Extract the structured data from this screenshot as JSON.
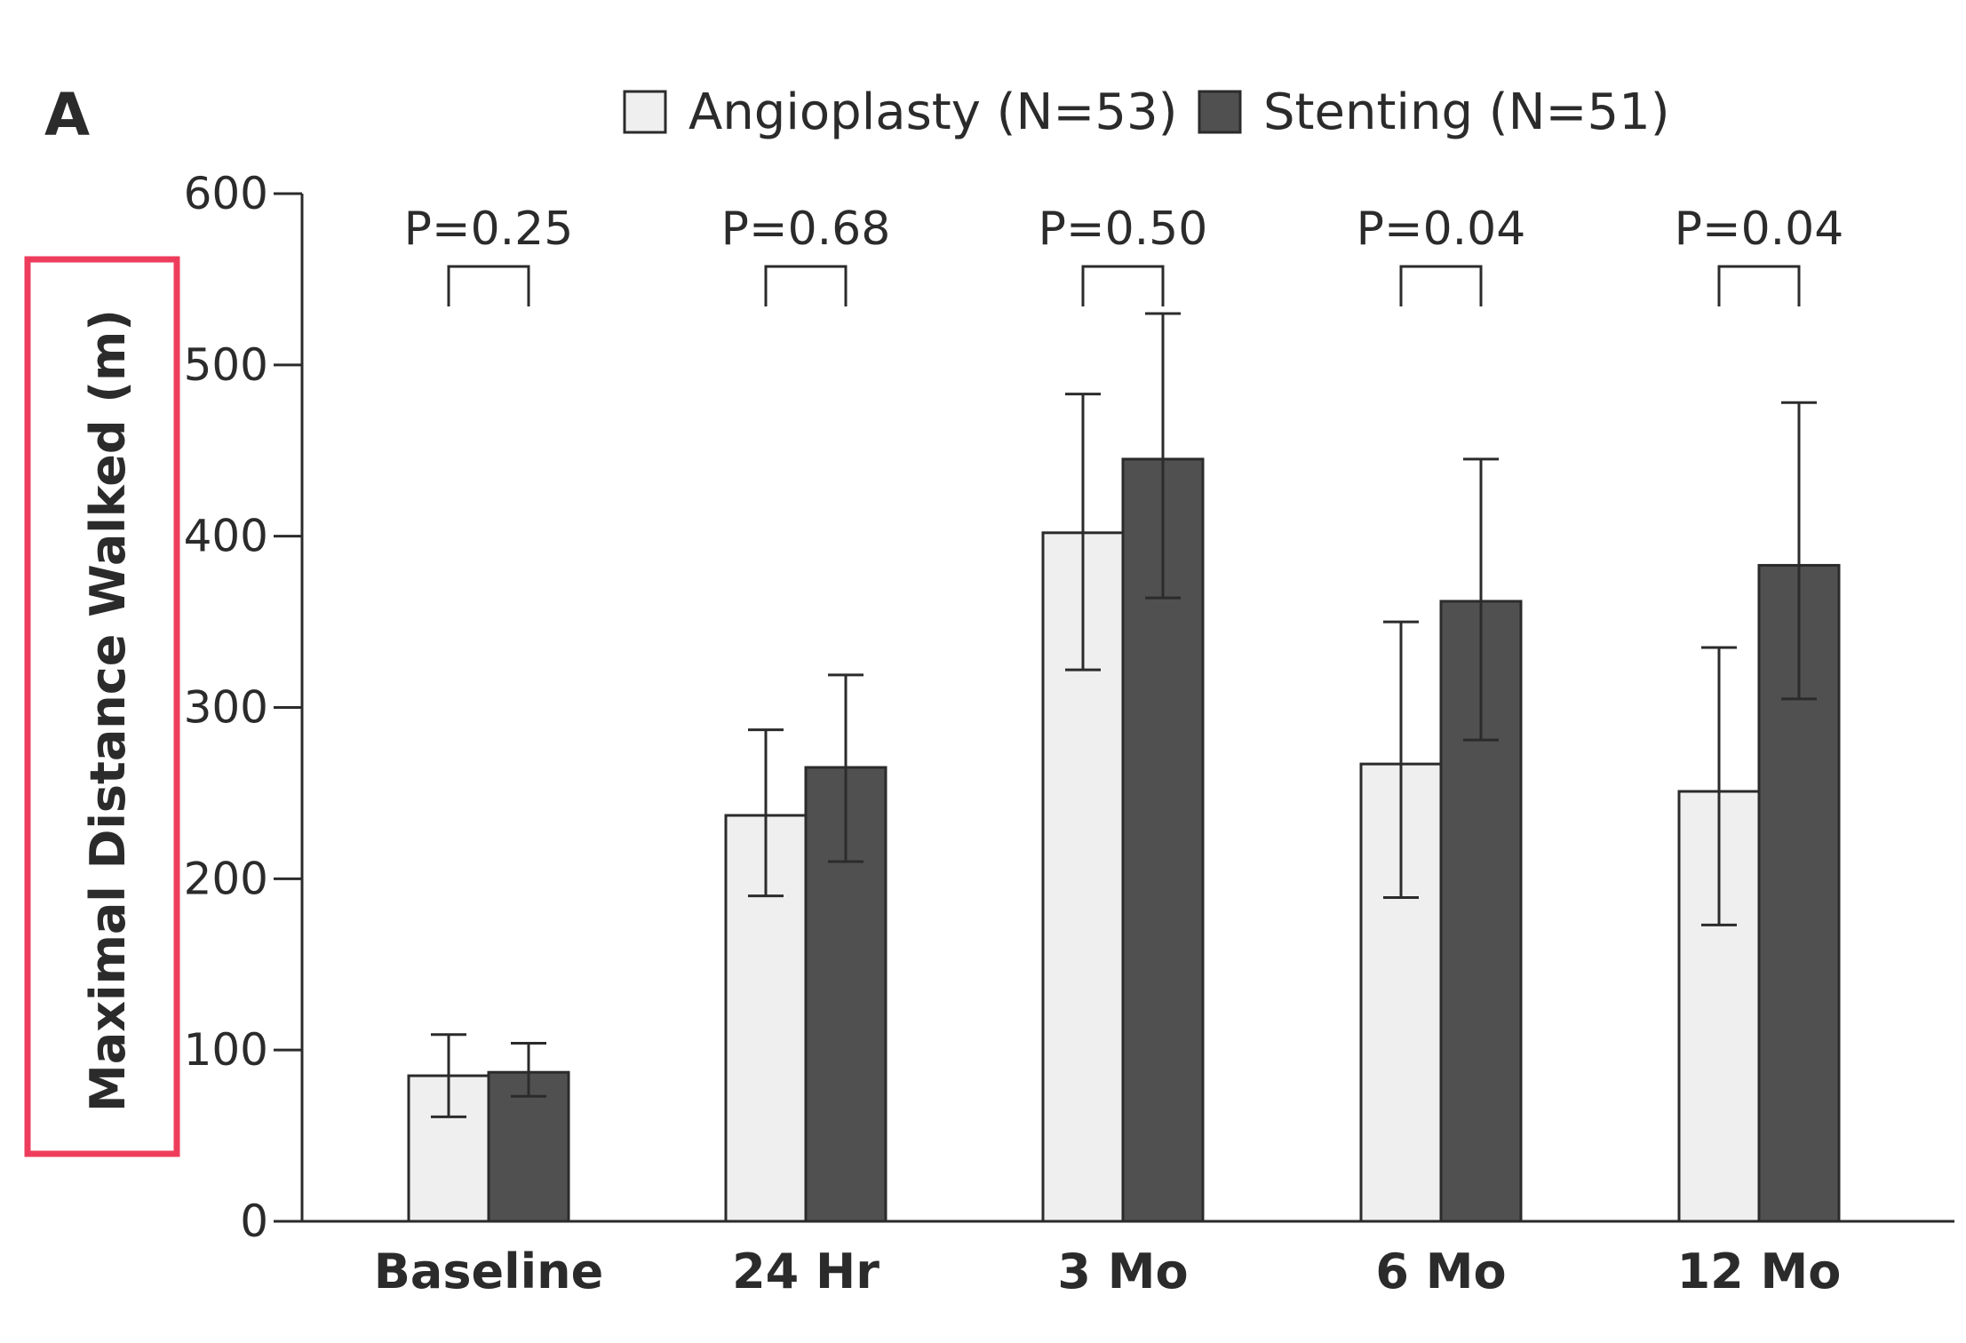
{
  "panel_label": "A",
  "highlight_color": "#ee3d5c",
  "colors": {
    "angioplasty": "#efefef",
    "stenting": "#505050",
    "axis": "#2b2b2b"
  },
  "chart_data": {
    "type": "bar",
    "title": "",
    "xlabel": "",
    "ylabel": "Maximal Distance Walked (m)",
    "ylim": [
      0,
      600
    ],
    "yticks": [
      0,
      100,
      200,
      300,
      400,
      500,
      600
    ],
    "categories": [
      "Baseline",
      "24 Hr",
      "3 Mo",
      "6 Mo",
      "12 Mo"
    ],
    "series": [
      {
        "name": "Angioplasty (N=53)",
        "values": [
          85,
          237,
          402,
          267,
          251
        ],
        "error_low": [
          61,
          190,
          322,
          189,
          173
        ],
        "error_high": [
          109,
          287,
          483,
          350,
          335
        ]
      },
      {
        "name": "Stenting (N=51)",
        "values": [
          87,
          265,
          445,
          362,
          383
        ],
        "error_low": [
          73,
          210,
          364,
          281,
          305
        ],
        "error_high": [
          104,
          319,
          530,
          445,
          478
        ]
      }
    ],
    "p_values": [
      "P=0.25",
      "P=0.68",
      "P=0.50",
      "P=0.04",
      "P=0.04"
    ],
    "legend_position": "top"
  }
}
